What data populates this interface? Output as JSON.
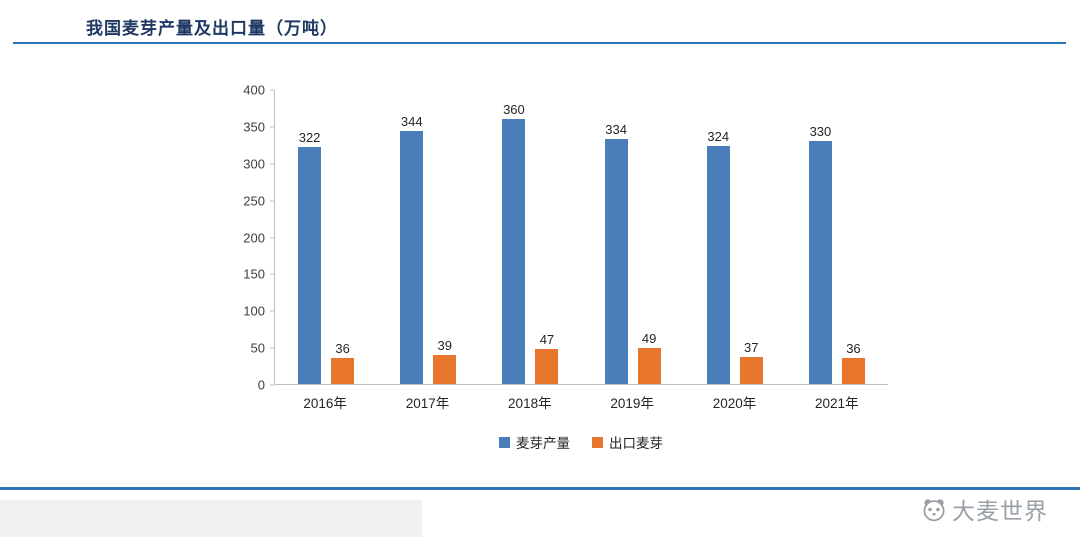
{
  "page": {
    "title": "我国麦芽产量及出口量（万吨）"
  },
  "chart_data": {
    "type": "bar",
    "title": "我国麦芽产量及出口量（万吨）",
    "categories": [
      "2016年",
      "2017年",
      "2018年",
      "2019年",
      "2020年",
      "2021年"
    ],
    "series": [
      {
        "name": "麦芽产量",
        "color": "#4a7ebb",
        "values": [
          322,
          344,
          360,
          334,
          324,
          330
        ]
      },
      {
        "name": "出口麦芽",
        "color": "#e8762c",
        "values": [
          36,
          39,
          47,
          49,
          37,
          36
        ]
      }
    ],
    "ylim": [
      0,
      400
    ],
    "ytick_interval": 50,
    "yticks": [
      400,
      350,
      300,
      250,
      200,
      150,
      100,
      50,
      0
    ],
    "grid": false,
    "legend_position": "bottom",
    "accent_line_color": "#2e75b6",
    "title_color": "#1f3864"
  },
  "footer": {
    "brand": "大麦世界"
  }
}
